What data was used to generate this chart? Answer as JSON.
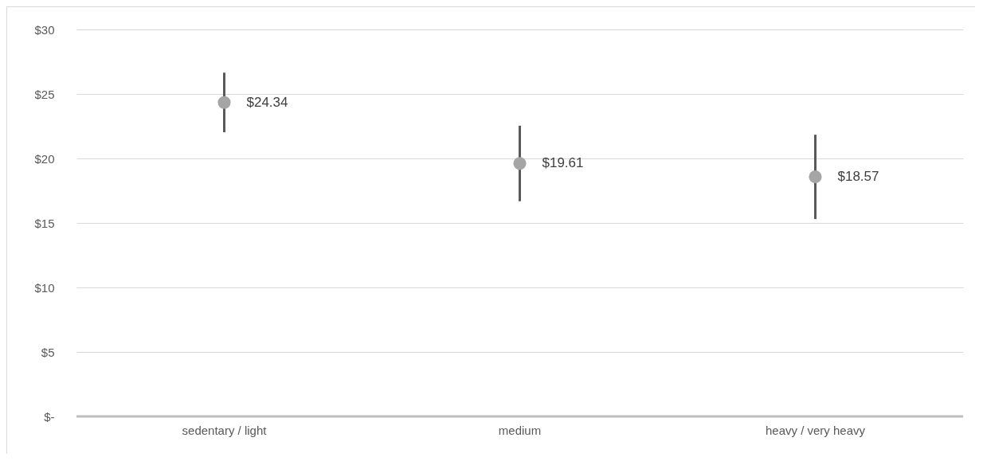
{
  "chart_data": {
    "type": "scatter",
    "categories": [
      "sedentary / light",
      "medium",
      "heavy / very heavy"
    ],
    "values": [
      24.34,
      19.61,
      18.57
    ],
    "errors": [
      2.31,
      2.93,
      3.27
    ],
    "value_labels": [
      "$24.34",
      "$19.61",
      "$18.57"
    ],
    "colors": [
      "#a5a5a5",
      "#a5a5a5",
      "#a5a5a5"
    ],
    "ylim": [
      0,
      30
    ],
    "yticks": [
      {
        "value": 0,
        "label": "$-"
      },
      {
        "value": 5,
        "label": "$5"
      },
      {
        "value": 10,
        "label": "$10"
      },
      {
        "value": 15,
        "label": "$15"
      },
      {
        "value": 20,
        "label": "$20"
      },
      {
        "value": 25,
        "label": "$25"
      },
      {
        "value": 30,
        "label": "$30"
      }
    ],
    "grid": "y",
    "marker": "circle"
  }
}
